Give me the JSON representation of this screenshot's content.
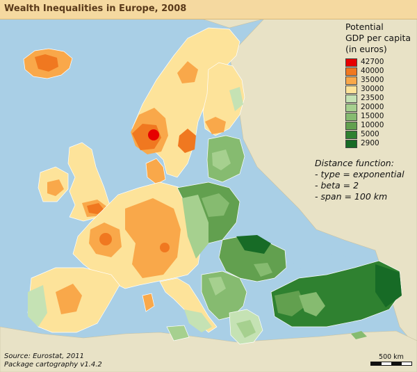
{
  "title": "Wealth Inequalities in Europe, 2008",
  "legend": {
    "title_lines": [
      "Potential",
      "GDP per capita",
      "(in euros)"
    ],
    "items": [
      {
        "label": "42700",
        "color": "#e60000"
      },
      {
        "label": "40000",
        "color": "#f07820"
      },
      {
        "label": "35000",
        "color": "#f9a84a"
      },
      {
        "label": "30000",
        "color": "#fde39a"
      },
      {
        "label": "23500",
        "color": "#c5e2b4"
      },
      {
        "label": "20000",
        "color": "#a6d08f"
      },
      {
        "label": "15000",
        "color": "#86bb70"
      },
      {
        "label": "10000",
        "color": "#62a04f"
      },
      {
        "label": "5000",
        "color": "#2f8130"
      },
      {
        "label": "2900",
        "color": "#176b26"
      }
    ]
  },
  "distance_function": {
    "lines": [
      "Distance function:",
      "- type = exponential",
      "- beta = 2",
      "- span = 100 km"
    ]
  },
  "source": {
    "lines": [
      "Source: Eurostat, 2011",
      "Package cartography v1.4.2"
    ]
  },
  "scale_bar": {
    "label": "500 km"
  },
  "colors": {
    "sea": "#a9cfe6",
    "land_outside": "#e8e2c6",
    "title_bg": "#f5d9a0"
  }
}
